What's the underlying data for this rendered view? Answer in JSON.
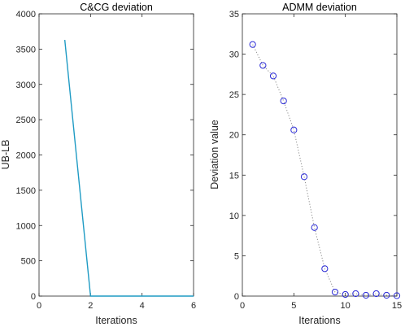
{
  "colors": {
    "cg_line": "#1f9bc4",
    "admm_line": "#8a8a8a",
    "admm_marker": "#2b2bd6",
    "axis": "#262626"
  },
  "chart_data": [
    {
      "type": "line",
      "title": "C&CG deviation",
      "xlabel": "Iterations",
      "ylabel": "UB-LB",
      "xlim": [
        0,
        6
      ],
      "ylim": [
        0,
        4000
      ],
      "xticks": [
        0,
        2,
        4,
        6
      ],
      "yticks": [
        0,
        500,
        1000,
        1500,
        2000,
        2500,
        3000,
        3500,
        4000
      ],
      "grid": false,
      "x": [
        1,
        2,
        3,
        4,
        5,
        6
      ],
      "y": [
        3630,
        0,
        0,
        0,
        0,
        0
      ],
      "line_style": "solid",
      "marker": "none"
    },
    {
      "type": "line",
      "title": "ADMM deviation",
      "xlabel": "Iterations",
      "ylabel": "Deviation value",
      "xlim": [
        0,
        15
      ],
      "ylim": [
        0,
        35
      ],
      "xticks": [
        0,
        5,
        10,
        15
      ],
      "yticks": [
        0,
        5,
        10,
        15,
        20,
        25,
        30,
        35
      ],
      "grid": false,
      "x": [
        1,
        2,
        3,
        4,
        5,
        6,
        7,
        8,
        9,
        10,
        11,
        12,
        13,
        14,
        15
      ],
      "y": [
        31.2,
        28.6,
        27.3,
        24.2,
        20.6,
        14.8,
        8.5,
        3.4,
        0.5,
        0.2,
        0.3,
        0.1,
        0.3,
        0.1,
        0.05
      ],
      "line_style": "dotted",
      "marker": "circle"
    }
  ]
}
